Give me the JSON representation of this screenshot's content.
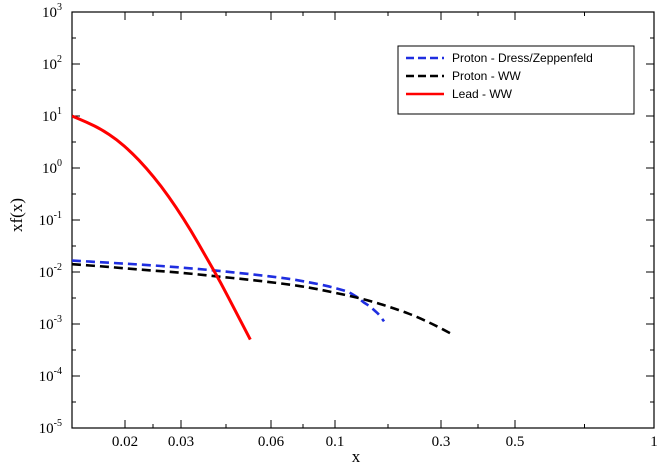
{
  "chart_data": {
    "type": "line",
    "xlabel": "x",
    "ylabel": "xf(x)",
    "x_tick_labels": [
      "0.02",
      "0.03",
      "0.06",
      "0.1",
      "0.3",
      "0.5",
      "1"
    ],
    "y_tick_labels": [
      {
        "base": "10",
        "exp": "3"
      },
      {
        "base": "10",
        "exp": "2"
      },
      {
        "base": "10",
        "exp": "1"
      },
      {
        "base": "10",
        "exp": "0"
      },
      {
        "base": "10",
        "exp": "-1"
      },
      {
        "base": "10",
        "exp": "-2"
      },
      {
        "base": "10",
        "exp": "-3"
      },
      {
        "base": "10",
        "exp": "-4"
      },
      {
        "base": "10",
        "exp": "-5"
      }
    ],
    "y_log_range": [
      -5,
      3
    ],
    "legend_position": "top-right",
    "series": [
      {
        "name": "Proton - Dress/Zeppenfeld",
        "color": "#1f2ee0",
        "dash": "dashed",
        "tick_positions": [
          0,
          0.12,
          0.24,
          0.36,
          0.48,
          0.6,
          0.72,
          0.8,
          0.86,
          0.9,
          0.93,
          0.95,
          0.965,
          0.98,
          1.0,
          1.02,
          1.035,
          1.05
        ],
        "log_y": [
          -1.78,
          -1.82,
          -1.86,
          -1.91,
          -1.97,
          -2.04,
          -2.12,
          -2.2,
          -2.27,
          -2.33,
          -2.38,
          -2.45,
          -2.5,
          -2.58,
          -2.65,
          -2.75,
          -2.83,
          -2.95
        ]
      },
      {
        "name": "Proton - WW",
        "color": "#000000",
        "dash": "dashed",
        "tick_positions": [
          0,
          0.12,
          0.24,
          0.36,
          0.48,
          0.6,
          0.72,
          0.8,
          0.86,
          0.92,
          0.98,
          1.04,
          1.1,
          1.16,
          1.22,
          1.28
        ],
        "log_y": [
          -1.85,
          -1.9,
          -1.96,
          -2.01,
          -2.08,
          -2.15,
          -2.23,
          -2.3,
          -2.37,
          -2.44,
          -2.52,
          -2.62,
          -2.73,
          -2.86,
          -3.02,
          -3.2
        ]
      },
      {
        "name": "Lead - WW",
        "color": "#ff0000",
        "dash": "solid",
        "tick_positions": [
          0,
          0.05,
          0.1,
          0.15,
          0.2,
          0.25,
          0.3,
          0.35,
          0.4,
          0.45,
          0.5,
          0.55,
          0.6
        ],
        "log_y": [
          1.0,
          0.88,
          0.74,
          0.55,
          0.3,
          0.0,
          -0.35,
          -0.75,
          -1.2,
          -1.7,
          -2.2,
          -2.75,
          -3.3
        ]
      }
    ]
  }
}
